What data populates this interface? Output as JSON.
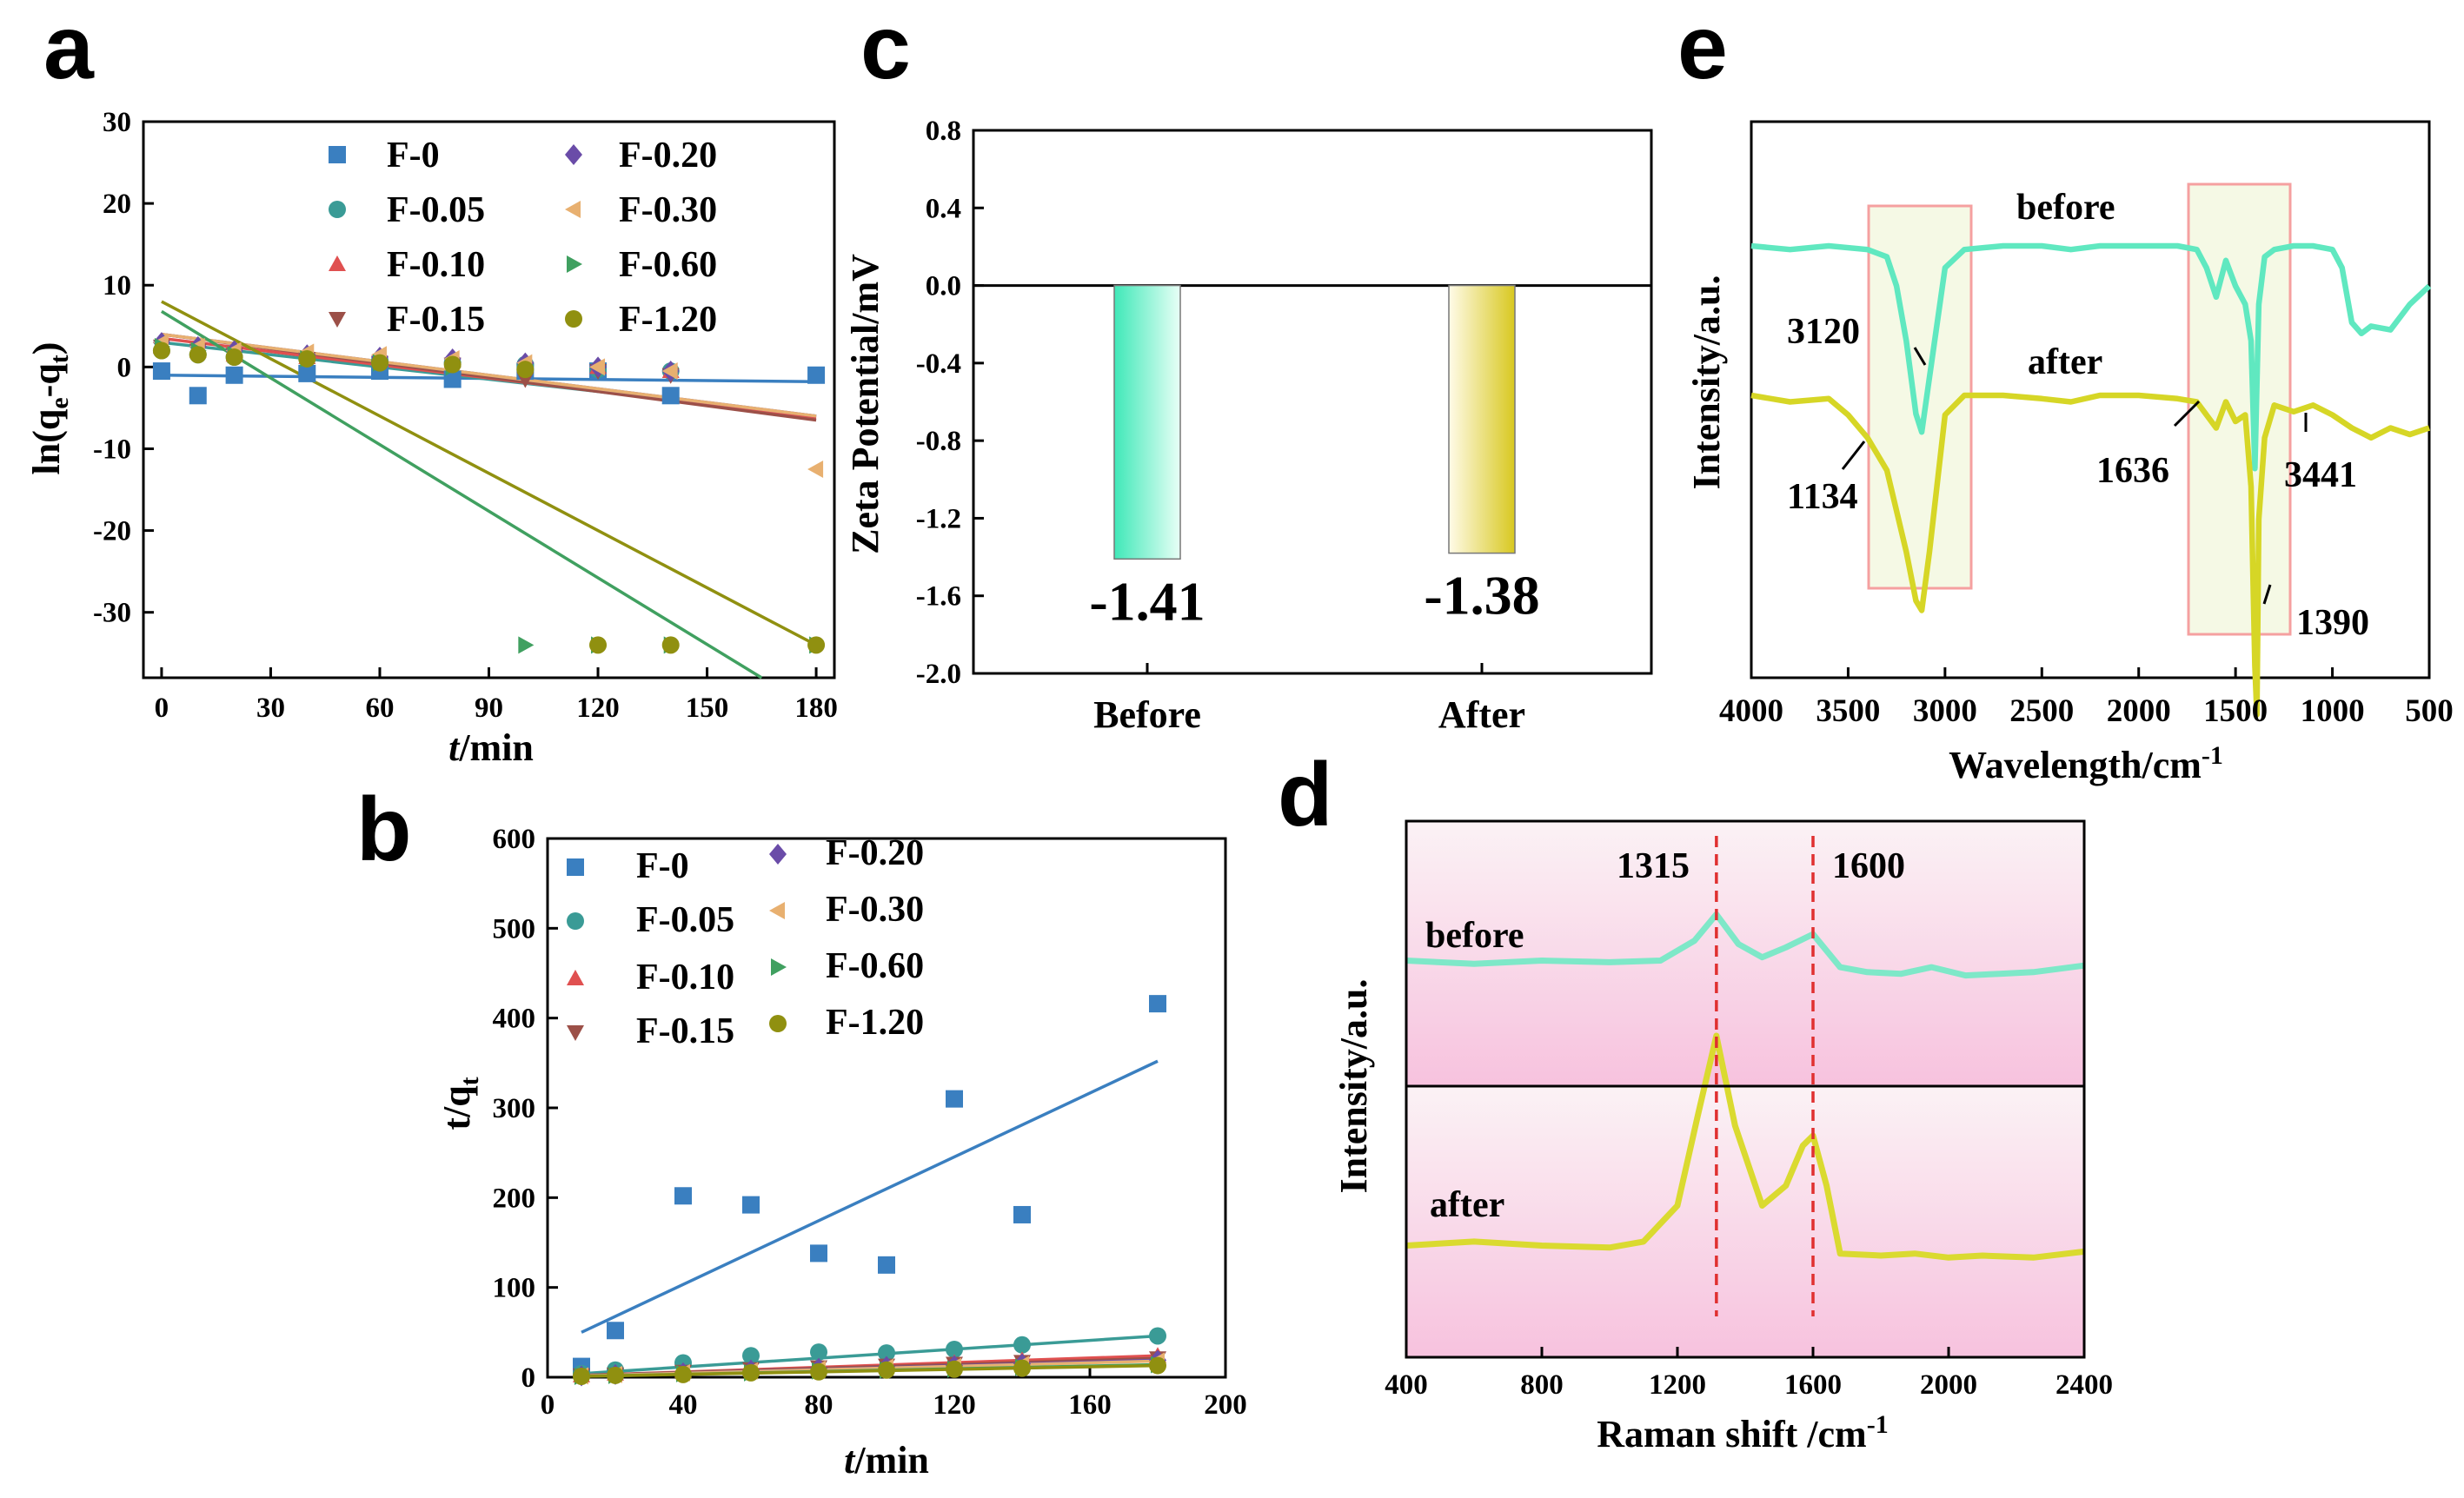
{
  "chart_data": [
    {
      "panel": "a",
      "type": "scatter",
      "xlabel": "t/min",
      "ylabel": "ln(qe-qt)",
      "xlim": [
        -5,
        185
      ],
      "ylim": [
        -38,
        30
      ],
      "xticks": [
        0,
        30,
        60,
        90,
        120,
        150,
        180
      ],
      "yticks": [
        30,
        20,
        10,
        0,
        -10,
        -20,
        -30
      ],
      "legend_position": "top",
      "series": [
        {
          "name": "F-0",
          "color": "#3a7fc0",
          "marker": "square",
          "x": [
            0,
            10,
            20,
            40,
            60,
            80,
            100,
            120,
            140,
            180
          ],
          "y": [
            -0.5,
            -3.5,
            -1.0,
            -0.8,
            -0.5,
            -1.5,
            -0.5,
            -0.5,
            -3.5,
            -1.0
          ],
          "fit": [
            [
              0,
              -1.0
            ],
            [
              180,
              -1.8
            ]
          ]
        },
        {
          "name": "F-0.05",
          "color": "#3a9b96",
          "marker": "circle",
          "x": [
            0,
            10,
            20,
            40,
            60,
            80,
            100,
            120,
            140
          ],
          "y": [
            2.0,
            1.5,
            1.2,
            1.0,
            0.8,
            0.5,
            0.3,
            -0.3,
            -0.5
          ],
          "fit": [
            [
              0,
              3.0
            ],
            [
              180,
              -6.0
            ]
          ]
        },
        {
          "name": "F-0.10",
          "color": "#e05050",
          "marker": "triangle-up",
          "x": [
            0,
            10,
            20,
            40,
            60,
            80,
            100,
            120,
            140
          ],
          "y": [
            2.5,
            2.0,
            1.5,
            1.2,
            1.0,
            0.8,
            0.5,
            0.0,
            -0.5
          ],
          "fit": [
            [
              0,
              3.5
            ],
            [
              180,
              -6.2
            ]
          ]
        },
        {
          "name": "F-0.15",
          "color": "#9c5048",
          "marker": "triangle-down",
          "x": [
            0,
            10,
            20,
            40,
            60,
            80,
            100,
            120,
            140
          ],
          "y": [
            2.5,
            2.0,
            1.5,
            1.0,
            0.5,
            0.3,
            -1.5,
            -0.5,
            -1.0
          ],
          "fit": [
            [
              0,
              4.0
            ],
            [
              180,
              -6.5
            ]
          ]
        },
        {
          "name": "F-0.20",
          "color": "#6a4ca8",
          "marker": "diamond",
          "x": [
            0,
            10,
            20,
            40,
            60,
            80,
            100,
            120,
            140
          ],
          "y": [
            3.0,
            2.5,
            2.0,
            1.5,
            1.2,
            1.0,
            0.5,
            0.0,
            -0.5
          ],
          "fit": [
            [
              0,
              4.0
            ],
            [
              180,
              -6.0
            ]
          ]
        },
        {
          "name": "F-0.30",
          "color": "#e8b070",
          "marker": "triangle-left",
          "x": [
            0,
            10,
            20,
            40,
            60,
            80,
            100,
            120,
            140,
            180
          ],
          "y": [
            3.0,
            2.5,
            2.0,
            1.8,
            1.5,
            1.0,
            0.5,
            0.0,
            -0.5,
            -12.5
          ],
          "fit": [
            [
              0,
              4.0
            ],
            [
              180,
              -6.0
            ]
          ]
        },
        {
          "name": "F-0.60",
          "color": "#40a060",
          "marker": "triangle-right",
          "x": [
            0,
            10,
            20,
            40,
            60,
            80,
            100,
            120,
            140,
            180
          ],
          "y": [
            2.5,
            2.0,
            1.5,
            1.0,
            0.5,
            0.0,
            -34,
            -34,
            -34,
            -34
          ],
          "fit": [
            [
              0,
              6.8
            ],
            [
              165,
              -38
            ]
          ]
        },
        {
          "name": "F-1.20",
          "color": "#909010",
          "marker": "circle",
          "x": [
            0,
            10,
            20,
            40,
            60,
            80,
            100,
            120,
            140,
            180
          ],
          "y": [
            2.0,
            1.5,
            1.2,
            1.0,
            0.5,
            0.3,
            -0.3,
            -34,
            -34,
            -34
          ],
          "fit": [
            [
              0,
              8.0
            ],
            [
              180,
              -34
            ]
          ]
        }
      ]
    },
    {
      "panel": "b",
      "type": "scatter",
      "xlabel": "t/min",
      "ylabel": "t/qt",
      "xlim": [
        0,
        200
      ],
      "ylim": [
        0,
        600
      ],
      "xticks": [
        0,
        40,
        80,
        120,
        160,
        200
      ],
      "yticks": [
        0,
        100,
        200,
        300,
        400,
        500,
        600
      ],
      "legend_position": "top-left",
      "series": [
        {
          "name": "F-0",
          "color": "#3a7fc0",
          "marker": "square",
          "x": [
            10,
            20,
            40,
            60,
            80,
            100,
            120,
            140,
            180
          ],
          "y": [
            12,
            52,
            202,
            192,
            138,
            125,
            310,
            181,
            416
          ],
          "fit": [
            [
              10,
              50
            ],
            [
              180,
              352
            ]
          ]
        },
        {
          "name": "F-0.05",
          "color": "#3a9b96",
          "marker": "circle",
          "x": [
            10,
            20,
            40,
            60,
            80,
            100,
            120,
            140,
            180
          ],
          "y": [
            4,
            8,
            16,
            24,
            28,
            27,
            31,
            36,
            46
          ],
          "fit": [
            [
              10,
              4
            ],
            [
              180,
              46
            ]
          ]
        },
        {
          "name": "F-0.10",
          "color": "#e05050",
          "marker": "triangle-up",
          "x": [
            10,
            20,
            40,
            60,
            80,
            100,
            120,
            140,
            180
          ],
          "y": [
            2,
            4,
            7,
            10,
            12,
            14,
            16,
            19,
            24
          ],
          "fit": [
            [
              10,
              2
            ],
            [
              180,
              24
            ]
          ]
        },
        {
          "name": "F-0.15",
          "color": "#9c5048",
          "marker": "triangle-down",
          "x": [
            10,
            20,
            40,
            60,
            80,
            100,
            120,
            140,
            180
          ],
          "y": [
            2,
            3,
            6,
            9,
            11,
            13,
            15,
            17,
            21
          ],
          "fit": [
            [
              10,
              2
            ],
            [
              180,
              21
            ]
          ]
        },
        {
          "name": "F-0.20",
          "color": "#6a4ca8",
          "marker": "diamond",
          "x": [
            10,
            20,
            40,
            60,
            80,
            100,
            120,
            140,
            180
          ],
          "y": [
            1.5,
            3,
            5,
            8,
            10,
            12,
            13,
            15,
            19
          ],
          "fit": [
            [
              10,
              1.5
            ],
            [
              180,
              19
            ]
          ]
        },
        {
          "name": "F-0.30",
          "color": "#e8b070",
          "marker": "triangle-left",
          "x": [
            10,
            20,
            40,
            60,
            80,
            100,
            120,
            140,
            180
          ],
          "y": [
            1.5,
            3,
            5,
            7,
            9,
            11,
            12,
            14,
            18
          ],
          "fit": [
            [
              10,
              1.5
            ],
            [
              180,
              18
            ]
          ]
        },
        {
          "name": "F-0.60",
          "color": "#40a060",
          "marker": "triangle-right",
          "x": [
            10,
            20,
            40,
            60,
            80,
            100,
            120,
            140,
            180
          ],
          "y": [
            1,
            2,
            4,
            5,
            7,
            8,
            9,
            11,
            14
          ],
          "fit": [
            [
              10,
              1
            ],
            [
              180,
              14
            ]
          ]
        },
        {
          "name": "F-1.20",
          "color": "#909010",
          "marker": "circle",
          "x": [
            10,
            20,
            40,
            60,
            80,
            100,
            120,
            140,
            180
          ],
          "y": [
            1,
            2,
            3,
            5,
            6,
            8,
            9,
            10,
            13
          ],
          "fit": [
            [
              10,
              1
            ],
            [
              180,
              13
            ]
          ]
        }
      ]
    },
    {
      "panel": "c",
      "type": "bar",
      "ylabel": "Zeta Potential/mV",
      "ylim": [
        -2.0,
        0.8
      ],
      "yticks": [
        "0.8",
        "0.4",
        "0.0",
        "-0.4",
        "-0.8",
        "-1.2",
        "-1.6",
        "-2.0"
      ],
      "categories": [
        "Before",
        "After"
      ],
      "values": [
        -1.41,
        -1.38
      ],
      "value_labels": [
        "-1.41",
        "-1.38"
      ],
      "colors": [
        "#3fe8b8",
        "#d8c820"
      ]
    },
    {
      "panel": "d",
      "type": "line",
      "xlabel": "Raman shift /cm",
      "xlabel_sup": "-1",
      "ylabel": "Intensity/a.u.",
      "xlim": [
        400,
        2400
      ],
      "xticks": [
        400,
        800,
        1200,
        1600,
        2000,
        2400
      ],
      "peaks": [
        "1315",
        "1600"
      ],
      "peak_positions": [
        1315,
        1600
      ],
      "series": [
        {
          "name": "before",
          "color": "#7ee8c8",
          "x": [
            400,
            600,
            800,
            1000,
            1150,
            1250,
            1315,
            1380,
            1450,
            1520,
            1600,
            1680,
            1760,
            1860,
            1950,
            2050,
            2150,
            2250,
            2400
          ],
          "y": [
            0.5,
            0.48,
            0.5,
            0.49,
            0.5,
            0.62,
            0.78,
            0.6,
            0.52,
            0.58,
            0.66,
            0.46,
            0.43,
            0.42,
            0.46,
            0.41,
            0.42,
            0.43,
            0.47
          ]
        },
        {
          "name": "after",
          "color": "#dada30",
          "x": [
            400,
            600,
            800,
            1000,
            1100,
            1200,
            1260,
            1315,
            1370,
            1450,
            1520,
            1570,
            1600,
            1640,
            1680,
            1800,
            1900,
            2000,
            2100,
            2250,
            2400
          ],
          "y": [
            0.5,
            0.52,
            0.5,
            0.49,
            0.52,
            0.7,
            1.15,
            1.55,
            1.1,
            0.7,
            0.8,
            1.0,
            1.05,
            0.8,
            0.46,
            0.45,
            0.46,
            0.44,
            0.45,
            0.44,
            0.47
          ]
        }
      ]
    },
    {
      "panel": "e",
      "type": "line",
      "xlabel": "Wavelength/cm",
      "xlabel_sup": "-1",
      "ylabel": "Intensity/a.u.",
      "xlim": [
        4000,
        500
      ],
      "xticks": [
        4000,
        3500,
        3000,
        2500,
        2000,
        1500,
        1000,
        500
      ],
      "annotations": [
        "3120",
        "1134",
        "1636",
        "3441",
        "1390"
      ],
      "series": [
        {
          "name": "before",
          "color": "#60e8c0",
          "x": [
            4000,
            3800,
            3600,
            3400,
            3300,
            3250,
            3200,
            3150,
            3120,
            3080,
            3000,
            2900,
            2700,
            2500,
            2350,
            2200,
            2000,
            1800,
            1700,
            1650,
            1600,
            1550,
            1500,
            1450,
            1420,
            1400,
            1380,
            1350,
            1300,
            1200,
            1100,
            1000,
            950,
            900,
            850,
            800,
            700,
            600,
            500
          ],
          "y": [
            0.96,
            0.95,
            0.96,
            0.95,
            0.93,
            0.85,
            0.7,
            0.5,
            0.45,
            0.6,
            0.9,
            0.95,
            0.96,
            0.96,
            0.95,
            0.96,
            0.96,
            0.96,
            0.95,
            0.9,
            0.82,
            0.92,
            0.85,
            0.8,
            0.7,
            0.35,
            0.8,
            0.93,
            0.95,
            0.96,
            0.96,
            0.95,
            0.9,
            0.75,
            0.72,
            0.74,
            0.73,
            0.8,
            0.85
          ]
        },
        {
          "name": "after",
          "color": "#d6d626",
          "x": [
            4000,
            3800,
            3600,
            3500,
            3400,
            3300,
            3200,
            3150,
            3120,
            3080,
            3000,
            2900,
            2700,
            2500,
            2350,
            2200,
            2000,
            1800,
            1700,
            1650,
            1600,
            1550,
            1500,
            1450,
            1420,
            1400,
            1390,
            1380,
            1350,
            1300,
            1200,
            1100,
            1000,
            900,
            800,
            700,
            600,
            500
          ],
          "y": [
            0.68,
            0.66,
            0.67,
            0.62,
            0.55,
            0.45,
            0.2,
            0.05,
            0.02,
            0.2,
            0.62,
            0.68,
            0.68,
            0.67,
            0.66,
            0.68,
            0.68,
            0.67,
            0.66,
            0.62,
            0.58,
            0.66,
            0.6,
            0.62,
            0.4,
            -0.15,
            -0.3,
            0.3,
            0.55,
            0.65,
            0.63,
            0.65,
            0.62,
            0.58,
            0.55,
            0.58,
            0.56,
            0.58
          ]
        }
      ]
    }
  ]
}
